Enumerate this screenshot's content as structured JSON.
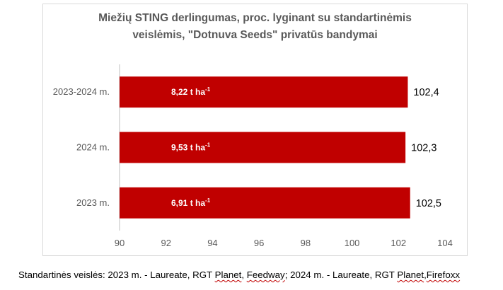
{
  "chart_data": {
    "type": "bar",
    "orientation": "horizontal",
    "title_lines": [
      "Miežių STING derlingumas, proc. lyginant su standartinėmis",
      "veislėmis, \"Dotnuva Seeds\" privatūs bandymai"
    ],
    "categories": [
      "2023-2024 m.",
      "2024 m.",
      "2023 m."
    ],
    "values": [
      102.4,
      102.3,
      102.5
    ],
    "value_labels": [
      "102,4",
      "102,3",
      "102,5"
    ],
    "inner_labels": [
      {
        "text": "8,22 t ha",
        "sup": "-1"
      },
      {
        "text": "9,53  t ha",
        "sup": "-1"
      },
      {
        "text": "6,91 t ha",
        "sup": "-1"
      }
    ],
    "xlim": [
      90,
      104
    ],
    "xticks": [
      90,
      92,
      94,
      96,
      98,
      100,
      102,
      104
    ],
    "grid": false,
    "legend": "none",
    "bar_color": "#c00000"
  },
  "footnote": {
    "lead": "Standartinės veislės: 2023 m. - Laureate, RGT ",
    "word1": "Planet",
    "mid": ", ",
    "word2": "Feedway",
    "mid2": "; 2024 m. - Laureate, RGT ",
    "word3": "Planet",
    "mid3": ",",
    "word4": "Firefoxx"
  }
}
